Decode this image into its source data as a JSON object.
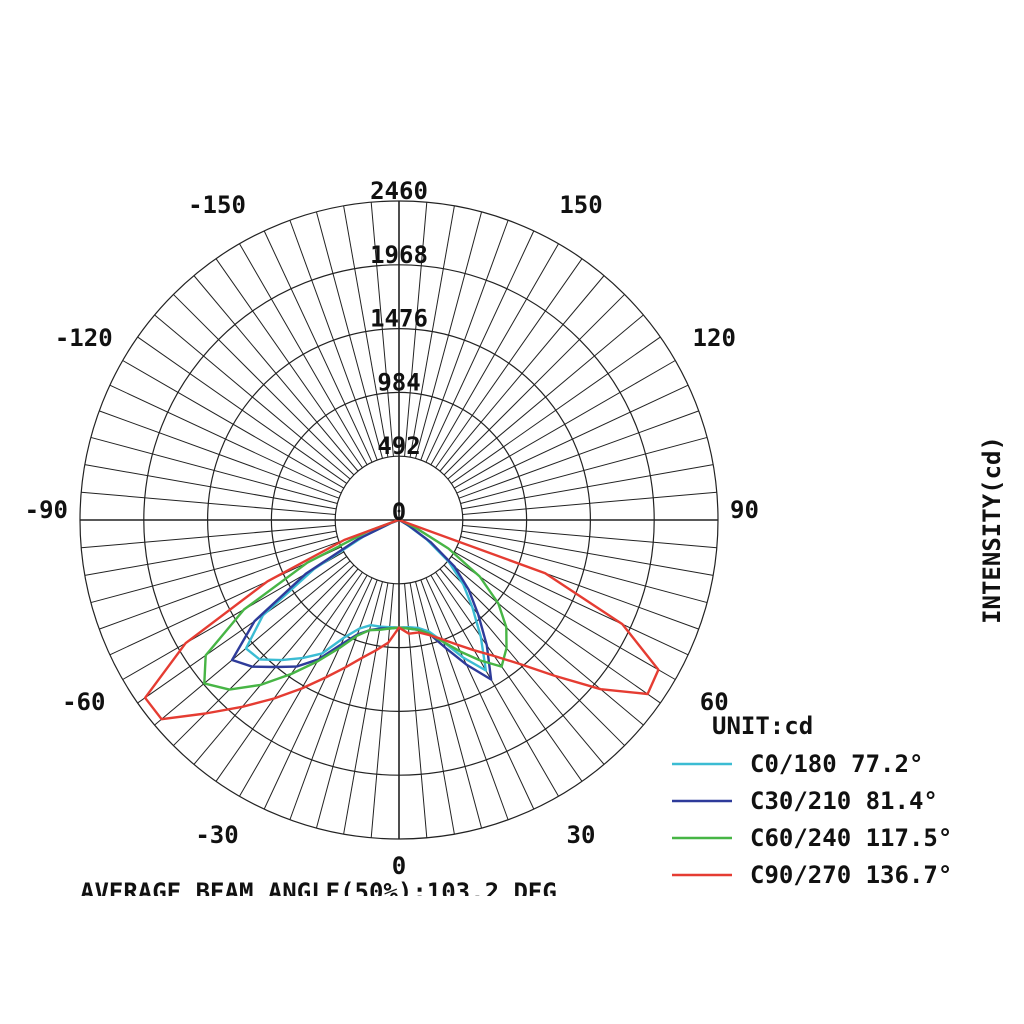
{
  "chart_data": {
    "type": "polar",
    "unit_label": "UNIT:cd",
    "ylabel": "INTENSITY(cd)",
    "footer": "AVERAGE BEAM ANGLE(50%):103.2 DEG",
    "radial_max": 2460,
    "radial_ticks": [
      0,
      492,
      984,
      1476,
      1968,
      2460
    ],
    "angle_ticks": [
      {
        "label": "0",
        "angle": 0
      },
      {
        "label": "30",
        "angle": 30
      },
      {
        "label": "-30",
        "angle": -30
      },
      {
        "label": "60",
        "angle": 60
      },
      {
        "label": "-60",
        "angle": -60
      },
      {
        "label": "90",
        "angle": 90
      },
      {
        "label": "-90",
        "angle": -90
      },
      {
        "label": "120",
        "angle": 120
      },
      {
        "label": "-120",
        "angle": -120
      },
      {
        "label": "150",
        "angle": 150
      },
      {
        "label": "-150",
        "angle": -150
      }
    ],
    "angles": [
      -90,
      -80,
      -70,
      -65,
      -60,
      -55,
      -50,
      -45,
      -40,
      -35,
      -30,
      -25,
      -20,
      -15,
      -10,
      -5,
      0,
      5,
      10,
      15,
      20,
      25,
      30,
      35,
      40,
      45,
      50,
      55,
      60,
      65,
      70,
      80,
      90
    ],
    "series": [
      {
        "name": "C0/180 77.2°",
        "color": "#3bbcd3",
        "values": [
          0,
          0,
          60,
          300,
          760,
          1280,
          1540,
          1520,
          1410,
          1300,
          1190,
          1000,
          890,
          840,
          835,
          830,
          830,
          830,
          845,
          890,
          1000,
          1170,
          1340,
          1100,
          880,
          700,
          500,
          260,
          70,
          10,
          0,
          0,
          0
        ]
      },
      {
        "name": "C30/210 81.4°",
        "color": "#2e3b9a",
        "values": [
          0,
          0,
          60,
          350,
          830,
          1360,
          1680,
          1600,
          1480,
          1380,
          1240,
          1060,
          940,
          880,
          850,
          840,
          830,
          840,
          860,
          910,
          1050,
          1230,
          1420,
          1180,
          950,
          760,
          560,
          300,
          90,
          15,
          0,
          0,
          0
        ]
      },
      {
        "name": "C60/240 117.5°",
        "color": "#47b545",
        "values": [
          0,
          10,
          250,
          780,
          1380,
          1820,
          1960,
          1850,
          1660,
          1450,
          1260,
          1090,
          950,
          880,
          860,
          840,
          830,
          840,
          860,
          910,
          1000,
          1120,
          1250,
          1380,
          1290,
          1170,
          1000,
          760,
          440,
          140,
          30,
          0,
          0
        ]
      },
      {
        "name": "C90/270 136.7°",
        "color": "#e53c32",
        "values": [
          0,
          10,
          450,
          1120,
          1900,
          2390,
          2390,
          2110,
          1880,
          1680,
          1500,
          1340,
          1210,
          1100,
          1020,
          950,
          830,
          880,
          880,
          920,
          980,
          1060,
          1160,
          1280,
          1450,
          1700,
          2030,
          2340,
          2310,
          1900,
          1200,
          0,
          0
        ]
      }
    ]
  }
}
